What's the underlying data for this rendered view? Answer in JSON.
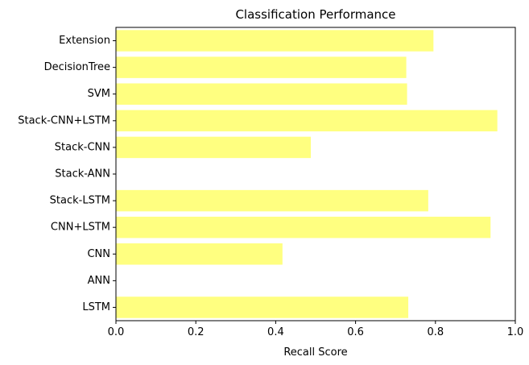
{
  "chart_data": {
    "type": "bar",
    "orientation": "horizontal",
    "title": "Classification Performance",
    "xlabel": "Recall Score",
    "ylabel": "",
    "xlim": [
      0,
      1.0
    ],
    "xticks": [
      "0.0",
      "0.2",
      "0.4",
      "0.6",
      "0.8",
      "1.0"
    ],
    "grid": false,
    "legend": "none",
    "bar_color": "#ffff80",
    "categories": [
      "LSTM",
      "ANN",
      "CNN",
      "CNN+LSTM",
      "Stack-LSTM",
      "Stack-ANN",
      "Stack-CNN",
      "Stack-CNN+LSTM",
      "SVM",
      "DecisionTree",
      "Extension"
    ],
    "values": [
      0.732,
      0,
      0.417,
      0.938,
      0.782,
      0,
      0.488,
      0.955,
      0.729,
      0.727,
      0.795
    ]
  }
}
